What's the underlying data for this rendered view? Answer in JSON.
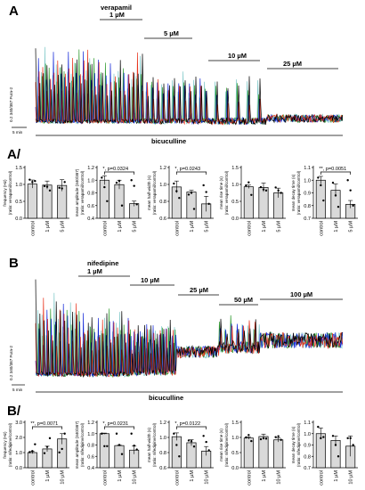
{
  "panels": {
    "A": {
      "label": "A",
      "drug": "verapamil",
      "doses": [
        "1 µM",
        "5 µM",
        "10 µM",
        "25 µM"
      ],
      "ylabel": "0.2 340/387 Fura-2",
      "scalebar": "5 min",
      "bottom_label": "bicuculline"
    },
    "B": {
      "label": "B",
      "drug": "nifedipine",
      "doses": [
        "1 µM",
        "10 µM",
        "25 µM",
        "50 µM",
        "100 µM"
      ],
      "ylabel": "0.2 340/387 Fura-2",
      "scalebar": "5 min",
      "bottom_label": "bicuculline"
    },
    "A2": {
      "label": "A/"
    },
    "B2": {
      "label": "B/"
    }
  },
  "trace_colors": [
    "#000000",
    "#e8331c",
    "#1428d8",
    "#2e9a2e",
    "#7ec8c8"
  ],
  "chart_data": [
    {
      "type": "bar",
      "panel": "A/",
      "categories": [
        "control",
        "1 µM",
        "5 µM"
      ],
      "values": [
        1.01,
        0.98,
        0.97
      ],
      "errors": [
        0.12,
        0.12,
        0.17
      ],
      "points": [
        [
          1.14,
          0.95,
          0.9
        ],
        [
          1.07,
          0.93,
          0.88
        ],
        [
          1.1,
          0.82,
          1.07
        ]
      ],
      "ylabel": "frequency (Hz)\n(ratio: verapamil/control)",
      "ylim": [
        0.0,
        1.5
      ],
      "yticks": [
        "0.0",
        "0.5",
        "1.0",
        "1.5"
      ],
      "sig": ""
    },
    {
      "type": "bar",
      "panel": "A/",
      "categories": [
        "control",
        "1 µM",
        "5 µM"
      ],
      "values": [
        1.0,
        0.93,
        0.63
      ],
      "errors": [
        0.07,
        0.07,
        0.04
      ],
      "points": [
        [
          1.04,
          0.96,
          1.0
        ],
        [
          0.89,
          0.99,
          0.91
        ],
        [
          0.67,
          0.6,
          0.62
        ]
      ],
      "ylabel": "mean amplitude (340/387)\n(ratio: verapamil/control)",
      "ylim": [
        0.4,
        1.2
      ],
      "yticks": [
        "0.4",
        "0.6",
        "0.8",
        "1.0",
        "1.2"
      ],
      "sig": "*, p=0.0324"
    },
    {
      "type": "bar",
      "panel": "A/",
      "categories": [
        "control",
        "1 µM",
        "5 µM"
      ],
      "values": [
        0.97,
        0.91,
        0.77
      ],
      "errors": [
        0.07,
        0.02,
        0.09
      ],
      "points": [
        [
          1.01,
          0.88,
          0.99
        ],
        [
          0.92,
          0.9,
          0.91
        ],
        [
          0.84,
          0.71,
          0.77
        ]
      ],
      "ylabel": "mean half-width (s)\n(ratio: verapamil/control)",
      "ylim": [
        0.6,
        1.2
      ],
      "yticks": [
        "0.6",
        "0.8",
        "1.0",
        "1.2"
      ],
      "sig": "*, p=0.0243"
    },
    {
      "type": "bar",
      "panel": "A/",
      "categories": [
        "control",
        "1 µM",
        "5 µM"
      ],
      "values": [
        0.93,
        0.91,
        0.75
      ],
      "errors": [
        0.05,
        0.13,
        0.14
      ],
      "points": [
        [
          0.97,
          0.92,
          0.91
        ],
        [
          1.06,
          0.85,
          0.82
        ],
        [
          0.69,
          0.82,
          0.75
        ]
      ],
      "ylabel": "mean rise time (s)\n(ratio: verapamil/control)",
      "ylim": [
        0.0,
        1.5
      ],
      "yticks": [
        "0.0",
        "0.5",
        "1.0",
        "1.5"
      ],
      "sig": ""
    },
    {
      "type": "bar",
      "panel": "A/",
      "categories": [
        "control",
        "1 µM",
        "5 µM"
      ],
      "values": [
        1.0,
        0.92,
        0.81
      ],
      "errors": [
        0.03,
        0.05,
        0.03
      ],
      "points": [
        [
          1.02,
          0.98,
          1.0
        ],
        [
          0.96,
          0.88,
          0.92
        ],
        [
          0.84,
          0.79,
          0.8
        ]
      ],
      "ylabel": "mean decay time (s)\n(ratio: verapamil/control)",
      "ylim": [
        0.7,
        1.1
      ],
      "yticks": [
        "0.7",
        "0.8",
        "0.9",
        "1.0",
        "1.1"
      ],
      "sig": "**, p=0.0051"
    },
    {
      "type": "bar",
      "panel": "B/",
      "categories": [
        "control",
        "1 µM",
        "10 µM"
      ],
      "values": [
        1.0,
        1.24,
        1.9
      ],
      "errors": [
        0.07,
        0.18,
        0.35
      ],
      "points": [
        [
          1.03,
          0.96,
          1.01
        ],
        [
          1.1,
          1.38,
          1.24
        ],
        [
          1.55,
          1.95,
          2.25
        ]
      ],
      "ylabel": "frequency (Hz)\n(ratio: nifedipine/control)",
      "ylim": [
        0.0,
        3.0
      ],
      "yticks": [
        "0.0",
        "1.0",
        "2.0",
        "3.0"
      ],
      "sig": "**, p=0.0071"
    },
    {
      "type": "bar",
      "panel": "B/",
      "categories": [
        "control",
        "1 µM",
        "10 µM"
      ],
      "values": [
        1.0,
        0.79,
        0.71
      ],
      "errors": [
        0.01,
        0.01,
        0.07
      ],
      "points": [
        [
          1.0,
          1.0,
          1.0
        ],
        [
          0.78,
          0.8,
          0.79
        ],
        [
          0.78,
          0.64,
          0.72
        ]
      ],
      "ylabel": "mean amplitude (340/387)\n(ratio: nifedipine/control)",
      "ylim": [
        0.4,
        1.2
      ],
      "yticks": [
        "0.4",
        "0.6",
        "0.8",
        "1.0",
        "1.2"
      ],
      "sig": "*, p=0.0231"
    },
    {
      "type": "bar",
      "panel": "B/",
      "categories": [
        "control",
        "1 µM",
        "10 µM"
      ],
      "values": [
        1.01,
        0.93,
        0.82
      ],
      "errors": [
        0.05,
        0.04,
        0.06
      ],
      "points": [
        [
          1.05,
          0.96,
          1.02
        ],
        [
          0.9,
          0.95,
          0.94
        ],
        [
          0.75,
          0.88,
          0.83
        ]
      ],
      "ylabel": "mean half-width (s)\n(ratio: nifedipine/control)",
      "ylim": [
        0.6,
        1.2
      ],
      "yticks": [
        "0.6",
        "0.8",
        "1.0",
        "1.2"
      ],
      "sig": "*, p=0.0122"
    },
    {
      "type": "bar",
      "panel": "B/",
      "categories": [
        "control",
        "1 µM",
        "10 µM"
      ],
      "values": [
        0.98,
        1.03,
        0.92
      ],
      "errors": [
        0.04,
        0.08,
        0.07
      ],
      "points": [
        [
          1.0,
          0.94,
          1.01
        ],
        [
          1.08,
          0.97,
          1.04
        ],
        [
          0.88,
          0.96,
          0.92
        ]
      ],
      "ylabel": "mean rise time (s)\n(ratio: nifedipine/control)",
      "ylim": [
        0.0,
        1.5
      ],
      "yticks": [
        "0.0",
        "0.5",
        "1.0",
        "1.5"
      ],
      "sig": ""
    },
    {
      "type": "bar",
      "panel": "B/",
      "categories": [
        "control",
        "1 µM",
        "10 µM"
      ],
      "values": [
        1.0,
        0.94,
        0.89
      ],
      "errors": [
        0.05,
        0.04,
        0.09
      ],
      "points": [
        [
          1.06,
          0.98,
          0.96
        ],
        [
          0.96,
          0.9,
          0.96
        ],
        [
          0.97,
          0.8,
          0.9
        ]
      ],
      "ylabel": "mean decay time (s)\n(ratio: nifedipine/control)",
      "ylim": [
        0.7,
        1.1
      ],
      "yticks": [
        "0.7",
        "0.8",
        "0.9",
        "1.0",
        "1.1"
      ],
      "sig": ""
    }
  ]
}
